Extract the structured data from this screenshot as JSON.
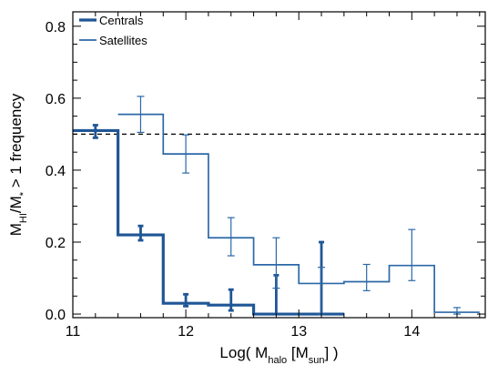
{
  "chart_data": {
    "type": "line",
    "step": true,
    "xlabel": {
      "pre": "Log( M",
      "sub": "halo",
      "mid": " [M",
      "sub2": "sun",
      "post": "] )"
    },
    "ylabel": {
      "pre": "M",
      "sub": "HI",
      "mid": "/M",
      "sub2": "*",
      "post": " > 1 frequency"
    },
    "xlim": [
      11,
      14.65
    ],
    "ylim": [
      -0.01,
      0.84
    ],
    "xticks": [
      11,
      12,
      13,
      14
    ],
    "xtick_labels": [
      "11",
      "12",
      "13",
      "14"
    ],
    "yticks": [
      0.0,
      0.2,
      0.4,
      0.6,
      0.8
    ],
    "ytick_labels": [
      "0.0",
      "0.2",
      "0.4",
      "0.6",
      "0.8"
    ],
    "x_minor_step": 0.2,
    "y_minor_step": 0.05,
    "reference_line": {
      "y": 0.5,
      "style": "dashed"
    },
    "legend_position": "top-left",
    "series": [
      {
        "name": "Centrals",
        "color": "#1f5696",
        "line_weight": "thick",
        "bin_edges": [
          11.0,
          11.4,
          11.8,
          12.2,
          12.6,
          13.0,
          13.4
        ],
        "centers": [
          11.2,
          11.6,
          12.0,
          12.4,
          12.8,
          13.2
        ],
        "values": [
          0.51,
          0.22,
          0.03,
          0.025,
          0.0,
          0.0
        ],
        "err_low": [
          0.49,
          0.205,
          0.022,
          0.01,
          0.0,
          0.0
        ],
        "err_high": [
          0.525,
          0.245,
          0.055,
          0.068,
          0.108,
          0.2
        ]
      },
      {
        "name": "Satellites",
        "color": "#2b68a8",
        "line_weight": "thin",
        "bin_edges": [
          11.4,
          11.8,
          12.2,
          12.6,
          13.0,
          13.4,
          13.8,
          14.2,
          14.6
        ],
        "centers": [
          11.6,
          12.0,
          12.4,
          12.8,
          13.2,
          13.6,
          14.0,
          14.4
        ],
        "values": [
          0.555,
          0.445,
          0.212,
          0.137,
          0.085,
          0.09,
          0.135,
          0.005
        ],
        "err_low": [
          0.505,
          0.392,
          0.162,
          0.072,
          0.0,
          0.065,
          0.093,
          0.0
        ],
        "err_high": [
          0.605,
          0.498,
          0.268,
          0.212,
          0.13,
          0.138,
          0.235,
          0.018
        ]
      }
    ]
  }
}
